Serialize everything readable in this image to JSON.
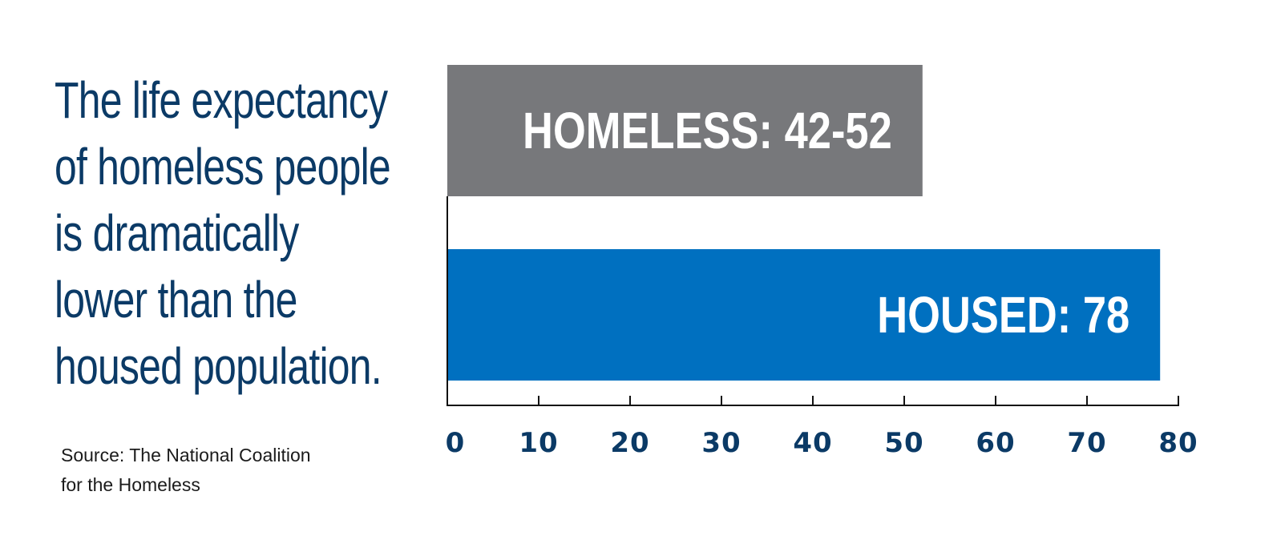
{
  "headline": {
    "lines": [
      "The life expectancy",
      "of homeless people",
      "is dramatically",
      "lower than the",
      "housed population."
    ]
  },
  "source": {
    "lines": [
      "Source: The National Coalition",
      "for the Homeless"
    ]
  },
  "colors": {
    "headline": "#0b3a66",
    "homeless_bar": "#77787b",
    "housed_bar": "#0070c0",
    "axis": "#111111",
    "tick_labels": "#0b3a66"
  },
  "chart_data": {
    "type": "bar",
    "orientation": "horizontal",
    "categories": [
      "HOMELESS",
      "HOUSED"
    ],
    "values": [
      52,
      78
    ],
    "ranges": [
      [
        42,
        52
      ],
      null
    ],
    "bar_labels": [
      "HOMELESS: 42-52",
      "HOUSED: 78"
    ],
    "bar_colors": [
      "#77787b",
      "#0070c0"
    ],
    "xlim": [
      0,
      80
    ],
    "xticks": [
      0,
      10,
      20,
      30,
      40,
      50,
      60,
      70,
      80
    ],
    "xtick_labels": [
      "0",
      "10",
      "20",
      "30",
      "40",
      "50",
      "60",
      "70",
      "80"
    ],
    "title": "",
    "xlabel": "",
    "ylabel": "",
    "grid": false,
    "legend": "none"
  }
}
